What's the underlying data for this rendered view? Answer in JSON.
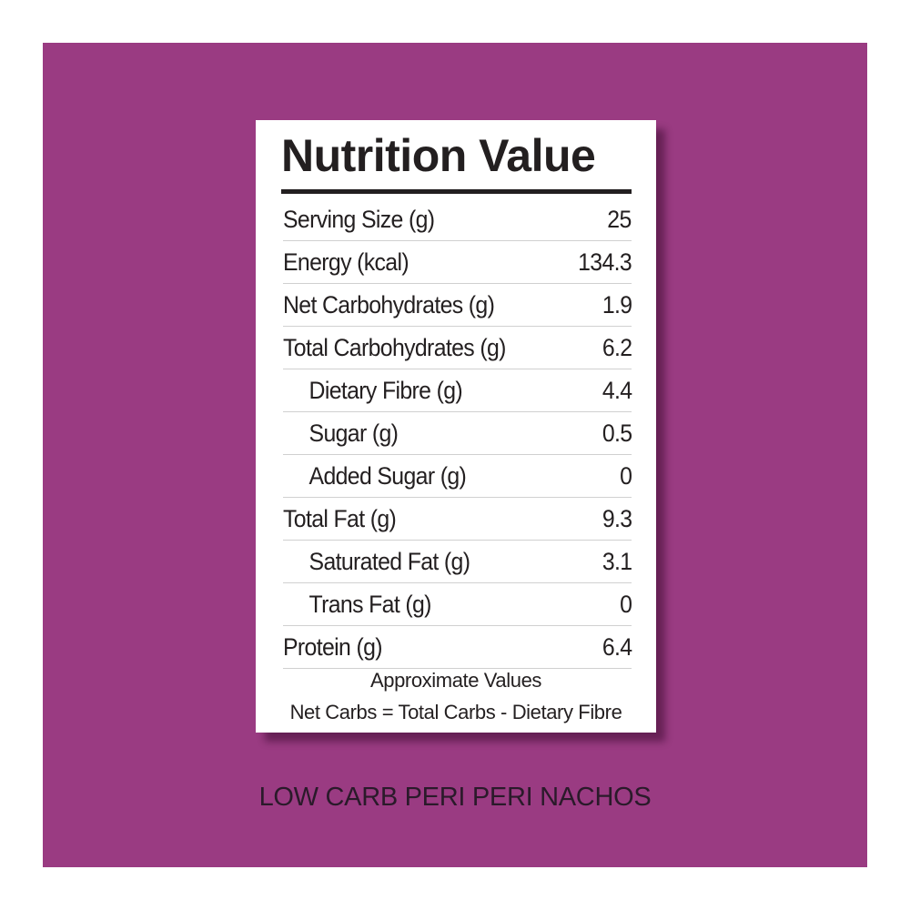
{
  "colors": {
    "background": "#9a3b82",
    "card": "#ffffff",
    "text": "#231f20"
  },
  "label": {
    "title": "Nutrition Value",
    "rows": [
      {
        "label": "Serving Size (g)",
        "value": "25",
        "indent": false
      },
      {
        "label": "Energy (kcal)",
        "value": "134.3",
        "indent": false
      },
      {
        "label": "Net Carbohydrates (g)",
        "value": "1.9",
        "indent": false
      },
      {
        "label": "Total Carbohydrates (g)",
        "value": "6.2",
        "indent": false
      },
      {
        "label": "Dietary Fibre (g)",
        "value": "4.4",
        "indent": true
      },
      {
        "label": "Sugar (g)",
        "value": "0.5",
        "indent": true
      },
      {
        "label": "Added Sugar (g)",
        "value": "0",
        "indent": true
      },
      {
        "label": "Total Fat (g)",
        "value": "9.3",
        "indent": false
      },
      {
        "label": "Saturated Fat (g)",
        "value": "3.1",
        "indent": true
      },
      {
        "label": "Trans Fat (g)",
        "value": "0",
        "indent": true
      },
      {
        "label": "Protein (g)",
        "value": "6.4",
        "indent": false
      }
    ],
    "footnote_1": "Approximate Values",
    "footnote_2": "Net Carbs = Total Carbs - Dietary Fibre"
  },
  "product_name": "LOW CARB PERI PERI NACHOS"
}
